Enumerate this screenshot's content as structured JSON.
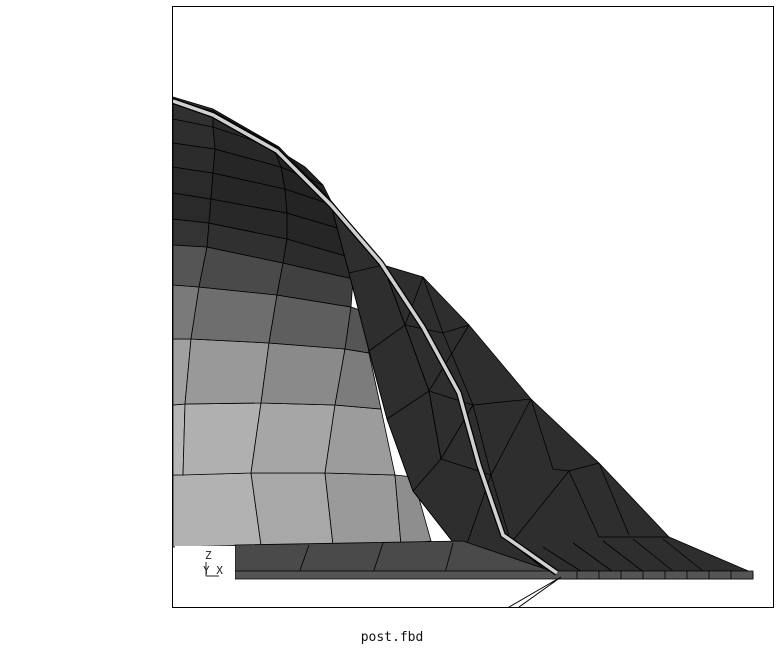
{
  "viewer": {
    "file_caption": "post.fbd",
    "triad": {
      "z_label": "Z",
      "yx_label": "Y X"
    },
    "colors": {
      "background": "#ffffff",
      "frame": "#000000",
      "edge_highlight": "#d0d0d0",
      "outline": "#000000"
    }
  }
}
